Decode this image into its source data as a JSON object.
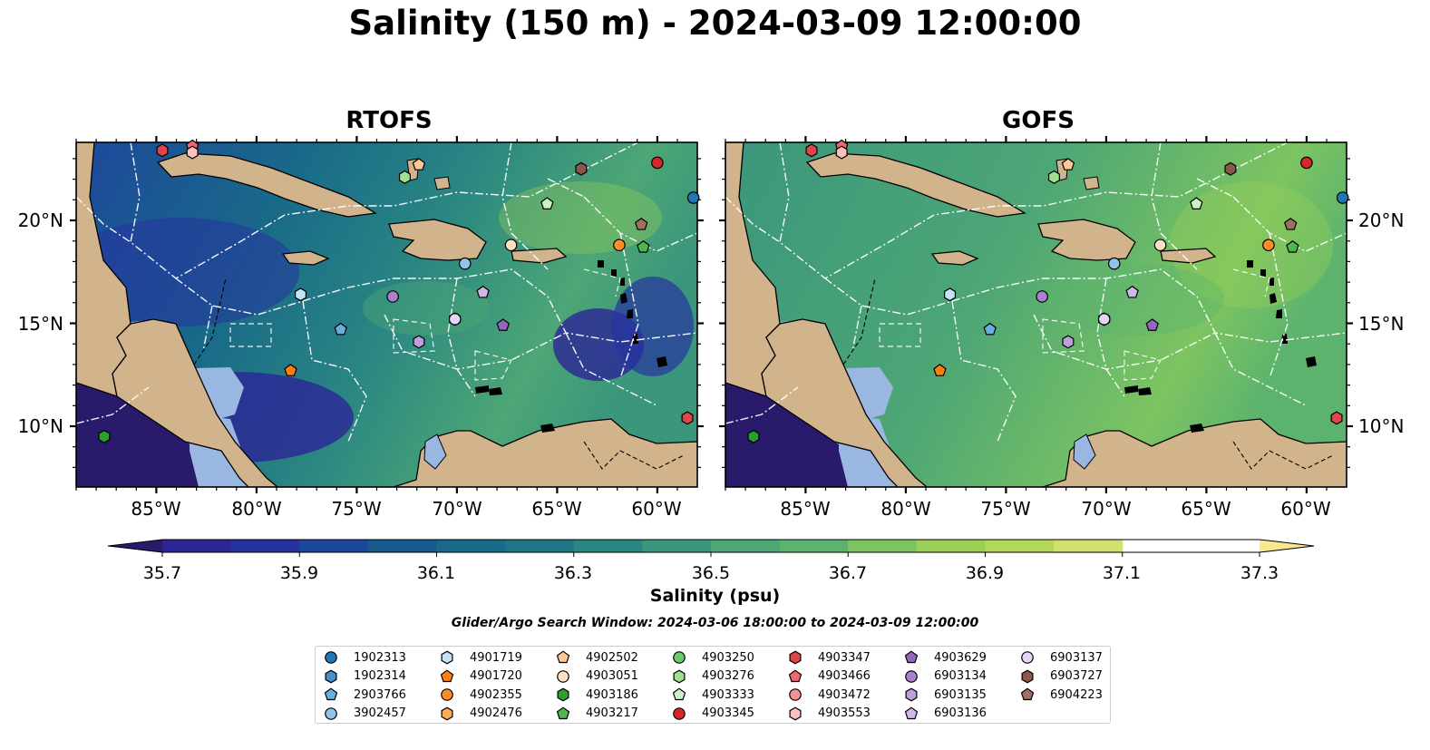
{
  "figure": {
    "title": "Salinity (150 m) - 2024-03-09 12:00:00",
    "panels": [
      "RTOFS",
      "GOFS"
    ],
    "lat_labels": [
      "20°N",
      "15°N",
      "10°N"
    ],
    "lon_labels": [
      "85°W",
      "80°W",
      "75°W",
      "70°W",
      "65°W",
      "60°W"
    ],
    "colorbar": {
      "title": "Salinity (psu)",
      "min": 35.6,
      "max": 37.4,
      "step": 0.1,
      "ticks": [
        "35.7",
        "35.9",
        "36.1",
        "36.3",
        "36.5",
        "36.7",
        "36.9",
        "37.1",
        "37.3"
      ],
      "colors": [
        "#2a1a6c",
        "#2c2596",
        "#26339f",
        "#1d479c",
        "#175a8f",
        "#196a88",
        "#1f7786",
        "#2a8682",
        "#3b967c",
        "#4da675",
        "#5cb36e",
        "#7dc461",
        "#9bd057",
        "#b4d85a",
        "#d2e06d",
        "#f8e98f"
      ]
    },
    "search_window": "Glider/Argo Search Window: 2024-03-06 18:00:00 to 2024-03-09 12:00:00",
    "colors": {
      "land": "#d2b48c",
      "shelf": "#9ab7e2",
      "deep_pacific": "#2a1a6c"
    }
  },
  "legend": [
    {
      "id": "1902313",
      "marker": "circle",
      "color": "#1f77b4"
    },
    {
      "id": "1902314",
      "marker": "hexagon",
      "color": "#4a8fc9"
    },
    {
      "id": "2903766",
      "marker": "pentagon",
      "color": "#6aaee0"
    },
    {
      "id": "3902457",
      "marker": "circle",
      "color": "#93c3ea"
    },
    {
      "id": "4901719",
      "marker": "hexagon",
      "color": "#c6e2f6"
    },
    {
      "id": "4901720",
      "marker": "pentagon",
      "color": "#ff7f0e"
    },
    {
      "id": "4902355",
      "marker": "circle",
      "color": "#ff8c2a"
    },
    {
      "id": "4902476",
      "marker": "hexagon",
      "color": "#ffaa55"
    },
    {
      "id": "4902502",
      "marker": "pentagon",
      "color": "#ffc896"
    },
    {
      "id": "4903051",
      "marker": "circle",
      "color": "#ffe0c2"
    },
    {
      "id": "4903186",
      "marker": "hexagon",
      "color": "#2ca02c"
    },
    {
      "id": "4903217",
      "marker": "pentagon",
      "color": "#4cb84c"
    },
    {
      "id": "4903250",
      "marker": "circle",
      "color": "#6dc86d"
    },
    {
      "id": "4903276",
      "marker": "hexagon",
      "color": "#9fdf8f"
    },
    {
      "id": "4903333",
      "marker": "pentagon",
      "color": "#c9f2c2"
    },
    {
      "id": "4903345",
      "marker": "circle",
      "color": "#d62728"
    },
    {
      "id": "4903347",
      "marker": "hexagon",
      "color": "#e04548"
    },
    {
      "id": "4903466",
      "marker": "pentagon",
      "color": "#ea6a6c"
    },
    {
      "id": "4903472",
      "marker": "circle",
      "color": "#f29393"
    },
    {
      "id": "4903553",
      "marker": "hexagon",
      "color": "#ffbfbf"
    },
    {
      "id": "4903629",
      "marker": "pentagon",
      "color": "#9467bd"
    },
    {
      "id": "6903134",
      "marker": "circle",
      "color": "#a882cc"
    },
    {
      "id": "6903135",
      "marker": "hexagon",
      "color": "#bd9fdc"
    },
    {
      "id": "6903136",
      "marker": "pentagon",
      "color": "#cfb8ea"
    },
    {
      "id": "6903137",
      "marker": "circle",
      "color": "#e6d5f6"
    },
    {
      "id": "6903727",
      "marker": "hexagon",
      "color": "#8c564b"
    },
    {
      "id": "6904223",
      "marker": "pentagon",
      "color": "#a0705f"
    }
  ],
  "floats": [
    {
      "id": "4903345",
      "lon": -60.0,
      "lat": 22.8
    },
    {
      "id": "6903727",
      "lon": -63.8,
      "lat": 22.5
    },
    {
      "id": "4902502",
      "lon": -71.9,
      "lat": 22.7
    },
    {
      "id": "4903276",
      "lon": -72.6,
      "lat": 22.1
    },
    {
      "id": "4903347",
      "lon": -84.7,
      "lat": 23.4
    },
    {
      "id": "4903466",
      "lon": -83.2,
      "lat": 23.6
    },
    {
      "id": "4903553",
      "lon": -83.2,
      "lat": 23.3
    },
    {
      "id": "4903333",
      "lon": -65.5,
      "lat": 20.8
    },
    {
      "id": "1902313",
      "lon": -58.2,
      "lat": 21.1
    },
    {
      "id": "6904223",
      "lon": -60.8,
      "lat": 19.8
    },
    {
      "id": "4902355",
      "lon": -61.9,
      "lat": 18.8
    },
    {
      "id": "4903217",
      "lon": -60.7,
      "lat": 18.7
    },
    {
      "id": "4903051",
      "lon": -67.3,
      "lat": 18.8
    },
    {
      "id": "3902457",
      "lon": -69.6,
      "lat": 17.9
    },
    {
      "id": "6903135",
      "lon": -70.1,
      "lat": 15.2
    },
    {
      "id": "6903137",
      "lon": -70.1,
      "lat": 15.2
    },
    {
      "id": "4903629",
      "lon": -67.7,
      "lat": 14.9
    },
    {
      "id": "6903136",
      "lon": -68.7,
      "lat": 16.5
    },
    {
      "id": "6903134",
      "lon": -73.2,
      "lat": 16.3
    },
    {
      "id": "6903135",
      "lon": -71.9,
      "lat": 14.1
    },
    {
      "id": "4901719",
      "lon": -77.8,
      "lat": 16.4
    },
    {
      "id": "2903766",
      "lon": -75.8,
      "lat": 14.7
    },
    {
      "id": "4901720",
      "lon": -78.3,
      "lat": 12.7
    },
    {
      "id": "4903186",
      "lon": -87.6,
      "lat": 9.5
    },
    {
      "id": "4903347",
      "lon": -58.5,
      "lat": 10.4
    }
  ]
}
